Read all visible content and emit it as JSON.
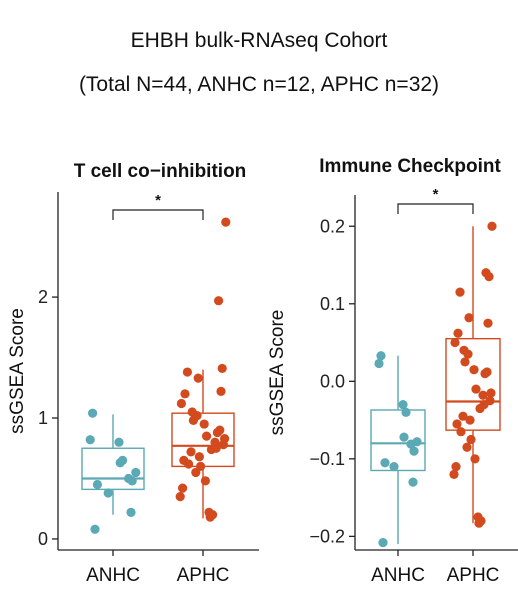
{
  "header": {
    "title": "EHBH bulk-RNAseq Cohort",
    "subtitle": "(Total N=44, ANHC n=12, APHC n=32)"
  },
  "colors": {
    "ANHC": "#5aa9b4",
    "APHC": "#d24a1e"
  },
  "chart_data": [
    {
      "type": "box",
      "title": "T cell co−inhibition",
      "ylabel": "ssGSEA Score",
      "xlabel": "",
      "categories": [
        "ANHC",
        "APHC"
      ],
      "ylim": [
        -0.05,
        2.72
      ],
      "yticks": [
        0,
        1,
        2
      ],
      "yticklabels": [
        "0",
        "1",
        "2"
      ],
      "grid": false,
      "significance": "*",
      "box": [
        {
          "group": "ANHC",
          "min": 0.2,
          "q1": 0.41,
          "median": 0.5,
          "q3": 0.75,
          "max": 1.03
        },
        {
          "group": "APHC",
          "min": 0.17,
          "q1": 0.6,
          "median": 0.77,
          "q3": 1.04,
          "max": 1.4
        }
      ],
      "points": [
        {
          "group": "ANHC",
          "values": [
            1.04,
            0.82,
            0.8,
            0.65,
            0.63,
            0.55,
            0.5,
            0.48,
            0.45,
            0.38,
            0.22,
            0.08
          ]
        },
        {
          "group": "APHC",
          "values": [
            2.62,
            1.97,
            1.41,
            1.38,
            1.33,
            1.22,
            1.2,
            1.12,
            1.05,
            1.02,
            0.98,
            0.95,
            0.9,
            0.88,
            0.85,
            0.83,
            0.8,
            0.78,
            0.75,
            0.74,
            0.72,
            0.68,
            0.65,
            0.62,
            0.6,
            0.55,
            0.48,
            0.42,
            0.35,
            0.22,
            0.2,
            0.18
          ]
        }
      ]
    },
    {
      "type": "box",
      "title": "Immune Checkpoint",
      "ylabel": "ssGSEA Score",
      "xlabel": "",
      "categories": [
        "ANHC",
        "APHC"
      ],
      "ylim": [
        -0.215,
        0.23
      ],
      "yticks": [
        0.2,
        0.1,
        0.0,
        -0.1,
        -0.2
      ],
      "yticklabels": [
        "0.2",
        "0.1",
        "0.0",
        "−0.1",
        "−0.2"
      ],
      "grid": false,
      "significance": "*",
      "box": [
        {
          "group": "ANHC",
          "min": -0.21,
          "q1": -0.115,
          "median": -0.08,
          "q3": -0.037,
          "max": 0.033
        },
        {
          "group": "APHC",
          "min": -0.183,
          "q1": -0.063,
          "median": -0.026,
          "q3": 0.055,
          "max": 0.2
        }
      ],
      "points": [
        {
          "group": "ANHC",
          "values": [
            0.033,
            0.023,
            -0.03,
            -0.04,
            -0.072,
            -0.078,
            -0.081,
            -0.09,
            -0.105,
            -0.11,
            -0.13,
            -0.208
          ]
        },
        {
          "group": "APHC",
          "values": [
            0.2,
            0.14,
            0.135,
            0.115,
            0.082,
            0.075,
            0.062,
            0.05,
            0.04,
            0.035,
            0.025,
            0.015,
            0.012,
            0.01,
            -0.01,
            -0.015,
            -0.018,
            -0.025,
            -0.03,
            -0.035,
            -0.045,
            -0.05,
            -0.055,
            -0.065,
            -0.075,
            -0.085,
            -0.1,
            -0.11,
            -0.12,
            -0.175,
            -0.18,
            -0.183
          ]
        }
      ]
    }
  ]
}
